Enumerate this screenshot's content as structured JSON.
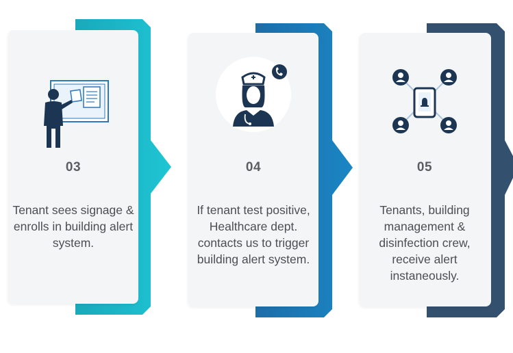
{
  "steps": [
    {
      "number": "03",
      "description": "Tenant sees signage & enrolls in building alert system.",
      "icon": "person-at-bulletin-board-icon",
      "color": "#1fb8c8"
    },
    {
      "number": "04",
      "description": "If tenant test positive, Healthcare dept. contacts us to trigger building alert system.",
      "icon": "nurse-phone-icon",
      "color": "#1f74b0"
    },
    {
      "number": "05",
      "description": "Tenants, building management & disinfection crew, receive alert instaneously.",
      "icon": "phone-alert-network-icon",
      "color": "#33506f"
    }
  ]
}
